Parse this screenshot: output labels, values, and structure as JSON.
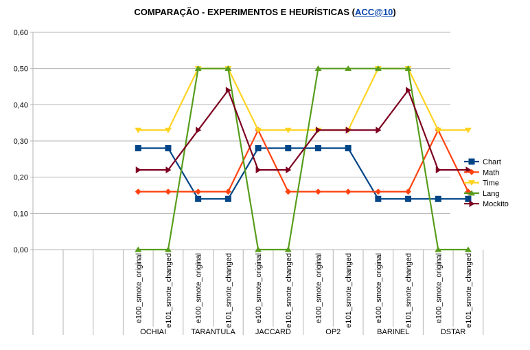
{
  "chart_data": {
    "type": "line",
    "title_prefix": "COMPARAÇÃO - EXPERIMENTOS E HEURÍSTICAS (",
    "title_link": "ACC@10",
    "title_suffix": ")",
    "heuristics": [
      "OCHIAI",
      "TARANTULA",
      "JACCARD",
      "OP2",
      "BARINEL",
      "DSTAR"
    ],
    "experiments": [
      "e100_smote_original",
      "e101_smote_changed"
    ],
    "yticks": [
      "0,60",
      "0,50",
      "0,40",
      "0,30",
      "0,20",
      "0,10",
      "0,00"
    ],
    "ylim": [
      0,
      0.6
    ],
    "legend_position": "right",
    "series": [
      {
        "name": "Chart",
        "color": "#004586",
        "marker": "square",
        "values": [
          0.28,
          0.28,
          0.14,
          0.14,
          0.28,
          0.28,
          0.28,
          0.28,
          0.14,
          0.14,
          0.14,
          0.14
        ]
      },
      {
        "name": "Math",
        "color": "#ff420e",
        "marker": "diamond",
        "values": [
          0.16,
          0.16,
          0.16,
          0.16,
          0.33,
          0.16,
          0.16,
          0.16,
          0.16,
          0.16,
          0.33,
          0.16
        ]
      },
      {
        "name": "Time",
        "color": "#ffd320",
        "marker": "triangle-down",
        "values": [
          0.33,
          0.33,
          0.5,
          0.5,
          0.33,
          0.33,
          0.33,
          0.33,
          0.5,
          0.5,
          0.33,
          0.33
        ]
      },
      {
        "name": "Lang",
        "color": "#579d1c",
        "marker": "triangle-up",
        "values": [
          0,
          0,
          0.5,
          0.5,
          0,
          0,
          0.5,
          0.5,
          0.5,
          0.5,
          0,
          0
        ]
      },
      {
        "name": "Mockito",
        "color": "#7e0021",
        "marker": "triangle-right",
        "values": [
          0.22,
          0.22,
          0.33,
          0.44,
          0.22,
          0.22,
          0.33,
          0.33,
          0.33,
          0.44,
          0.22,
          0.22
        ]
      }
    ]
  }
}
